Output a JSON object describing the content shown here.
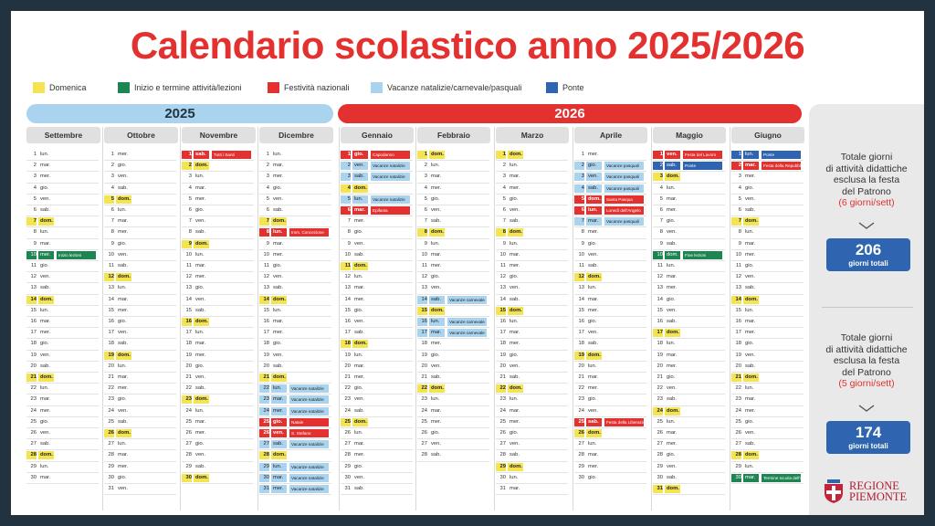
{
  "title": "Calendario scolastico anno 2025/2026",
  "legend": [
    {
      "label": "Domenica",
      "color": "#f4e451"
    },
    {
      "label": "Inizio e termine attività/lezioni",
      "color": "#1d8551"
    },
    {
      "label": "Festività nazionali",
      "color": "#e2312f"
    },
    {
      "label": "Vacanze natalizie/carnevale/pasquali",
      "color": "#a9d3ee"
    },
    {
      "label": "Ponte",
      "color": "#2f65b0"
    }
  ],
  "years": [
    "2025",
    "2026"
  ],
  "months": [
    {
      "name": "Settembre",
      "start": 1,
      "days": 30,
      "events": {
        "10": {
          "t": "g",
          "l": "Inizio lezioni"
        }
      }
    },
    {
      "name": "Ottobre",
      "start": 3,
      "days": 31,
      "events": {}
    },
    {
      "name": "Novembre",
      "start": 6,
      "days": 30,
      "events": {
        "1": {
          "t": "h",
          "l": "Tutti i Santi"
        }
      }
    },
    {
      "name": "Dicembre",
      "start": 1,
      "days": 31,
      "events": {
        "8": {
          "t": "h",
          "l": "Imm. Concezione"
        },
        "22": {
          "t": "v",
          "l": "Vacanze natalizie"
        },
        "23": {
          "t": "v",
          "l": "Vacanze natalizie"
        },
        "24": {
          "t": "v",
          "l": "Vacanze natalizie"
        },
        "25": {
          "t": "h",
          "l": "Natale"
        },
        "26": {
          "t": "h",
          "l": "S. Stefano"
        },
        "27": {
          "t": "v",
          "l": "Vacanze natalizie"
        },
        "29": {
          "t": "v",
          "l": "Vacanze natalizie"
        },
        "30": {
          "t": "v",
          "l": "Vacanze natalizie"
        },
        "31": {
          "t": "v",
          "l": "Vacanze natalizie"
        }
      }
    },
    {
      "name": "Gennaio",
      "start": 4,
      "days": 31,
      "events": {
        "1": {
          "t": "h",
          "l": "Capodanno"
        },
        "2": {
          "t": "v",
          "l": "Vacanze natalizie"
        },
        "3": {
          "t": "v",
          "l": "Vacanze natalizie"
        },
        "5": {
          "t": "v",
          "l": "Vacanze natalizie"
        },
        "6": {
          "t": "h",
          "l": "Epifania"
        }
      }
    },
    {
      "name": "Febbraio",
      "start": 0,
      "days": 28,
      "events": {
        "14": {
          "t": "v",
          "l": "Vacanze carnevale"
        },
        "16": {
          "t": "v",
          "l": "Vacanze carnevale"
        },
        "17": {
          "t": "v",
          "l": "Vacanze carnevale"
        }
      }
    },
    {
      "name": "Marzo",
      "start": 0,
      "days": 31,
      "events": {}
    },
    {
      "name": "Aprile",
      "start": 3,
      "days": 30,
      "events": {
        "2": {
          "t": "v",
          "l": "Vacanze pasquali"
        },
        "3": {
          "t": "v",
          "l": "Vacanze pasquali"
        },
        "4": {
          "t": "v",
          "l": "Vacanze pasquali"
        },
        "5": {
          "t": "h",
          "l": "Santa Pasqua"
        },
        "6": {
          "t": "h",
          "l": "Lunedì dell'Angelo"
        },
        "7": {
          "t": "v",
          "l": "Vacanze pasquali"
        },
        "25": {
          "t": "h",
          "l": "Festa della Liberazione"
        }
      }
    },
    {
      "name": "Maggio",
      "start": 5,
      "days": 31,
      "events": {
        "1": {
          "t": "h",
          "l": "Festa del Lavoro"
        },
        "2": {
          "t": "p",
          "l": "Ponte"
        },
        "10": {
          "t": "g",
          "l": "Fine lezioni"
        }
      }
    },
    {
      "name": "Giugno",
      "start": 1,
      "days": 30,
      "events": {
        "1": {
          "t": "p",
          "l": "Ponte"
        },
        "2": {
          "t": "h",
          "l": "Festa della Repubblica"
        },
        "30": {
          "t": "g",
          "l": "Termine scuola dell'infanzia"
        }
      }
    }
  ],
  "weekdays": [
    "dom.",
    "lun.",
    "mar.",
    "mer.",
    "gio.",
    "ven.",
    "sab."
  ],
  "side": {
    "block1": {
      "lines": [
        "Totale giorni",
        "di attività didattiche",
        "esclusa la festa",
        "del Patrono"
      ],
      "note": "(6 giorni/sett)",
      "total": "206",
      "total_label": "giorni totali"
    },
    "block2": {
      "lines": [
        "Totale giorni",
        "di attività didattiche",
        "esclusa la festa",
        "del Patrono"
      ],
      "note": "(5 giorni/sett)",
      "total": "174",
      "total_label": "giorni totali"
    }
  },
  "logo": {
    "line1": "REGIONE",
    "line2": "PIEMONTE"
  }
}
